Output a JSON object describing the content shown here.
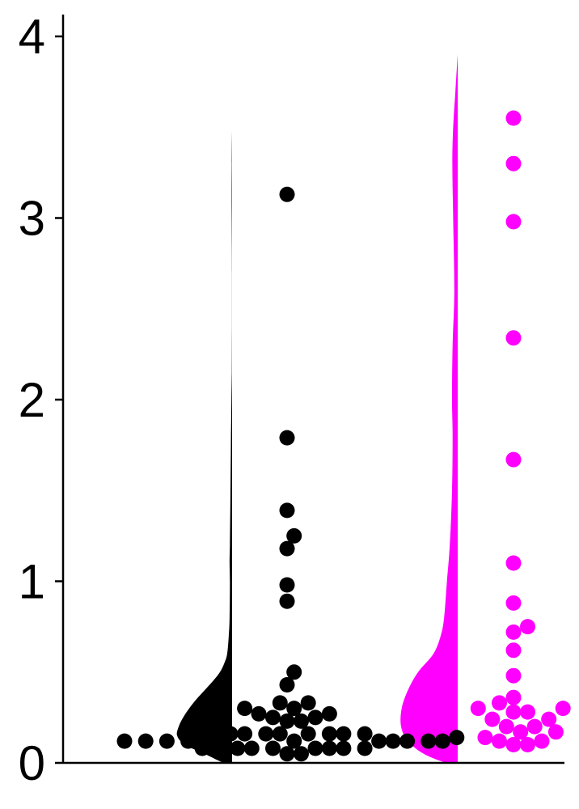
{
  "chart_data": {
    "type": "violin-swarm",
    "ylim": [
      0,
      4.1
    ],
    "yticks": [
      0,
      1,
      2,
      3,
      4
    ],
    "ytick_labels": [
      "0",
      "1",
      "2",
      "3",
      "4"
    ],
    "grid": false,
    "series": [
      {
        "color": "#000000",
        "density_max": 3.48,
        "density": [
          {
            "y": 0.0,
            "d": 0.15
          },
          {
            "y": 0.05,
            "d": 0.5
          },
          {
            "y": 0.1,
            "d": 0.86
          },
          {
            "y": 0.15,
            "d": 1.0
          },
          {
            "y": 0.2,
            "d": 0.97
          },
          {
            "y": 0.25,
            "d": 0.89
          },
          {
            "y": 0.3,
            "d": 0.78
          },
          {
            "y": 0.35,
            "d": 0.65
          },
          {
            "y": 0.4,
            "d": 0.5
          },
          {
            "y": 0.45,
            "d": 0.35
          },
          {
            "y": 0.5,
            "d": 0.22
          },
          {
            "y": 0.55,
            "d": 0.14
          },
          {
            "y": 0.6,
            "d": 0.09
          },
          {
            "y": 0.7,
            "d": 0.06
          },
          {
            "y": 0.8,
            "d": 0.045
          },
          {
            "y": 1.0,
            "d": 0.04
          },
          {
            "y": 1.1,
            "d": 0.045
          },
          {
            "y": 1.2,
            "d": 0.04
          },
          {
            "y": 1.4,
            "d": 0.033
          },
          {
            "y": 1.6,
            "d": 0.026
          },
          {
            "y": 1.8,
            "d": 0.02
          },
          {
            "y": 2.0,
            "d": 0.012
          },
          {
            "y": 2.15,
            "d": 0.005
          },
          {
            "y": 2.4,
            "d": 0.002
          },
          {
            "y": 2.7,
            "d": 0.0015
          },
          {
            "y": 2.9,
            "d": 0.004
          },
          {
            "y": 3.1,
            "d": 0.007
          },
          {
            "y": 3.3,
            "d": 0.005
          },
          {
            "y": 3.48,
            "d": 0.0
          }
        ],
        "values": [
          3.13,
          1.79,
          1.39,
          1.25,
          1.18,
          0.98,
          0.89,
          0.5,
          0.43,
          0.33,
          0.33,
          0.3,
          0.3,
          0.27,
          0.27,
          0.25,
          0.25,
          0.23,
          0.23,
          0.16,
          0.16,
          0.16,
          0.16,
          0.16,
          0.16,
          0.16,
          0.16,
          0.16,
          0.14,
          0.12,
          0.12,
          0.12,
          0.12,
          0.12,
          0.12,
          0.12,
          0.12,
          0.12,
          0.12,
          0.08,
          0.08,
          0.08,
          0.08,
          0.08,
          0.08,
          0.08,
          0.08,
          0.08,
          0.05,
          0.05
        ]
      },
      {
        "color": "#ff00ff",
        "density_max": 3.9,
        "density": [
          {
            "y": 0.0,
            "d": 0.2
          },
          {
            "y": 0.05,
            "d": 0.6
          },
          {
            "y": 0.12,
            "d": 0.88
          },
          {
            "y": 0.2,
            "d": 1.0
          },
          {
            "y": 0.3,
            "d": 0.99
          },
          {
            "y": 0.4,
            "d": 0.88
          },
          {
            "y": 0.5,
            "d": 0.7
          },
          {
            "y": 0.6,
            "d": 0.43
          },
          {
            "y": 0.7,
            "d": 0.3
          },
          {
            "y": 0.8,
            "d": 0.24
          },
          {
            "y": 1.0,
            "d": 0.19
          },
          {
            "y": 1.2,
            "d": 0.14
          },
          {
            "y": 1.5,
            "d": 0.1
          },
          {
            "y": 1.8,
            "d": 0.09
          },
          {
            "y": 2.0,
            "d": 0.1
          },
          {
            "y": 2.3,
            "d": 0.09
          },
          {
            "y": 2.6,
            "d": 0.06
          },
          {
            "y": 3.0,
            "d": 0.08
          },
          {
            "y": 3.3,
            "d": 0.095
          },
          {
            "y": 3.5,
            "d": 0.08
          },
          {
            "y": 3.7,
            "d": 0.04
          },
          {
            "y": 3.9,
            "d": 0.0
          }
        ],
        "values": [
          3.55,
          3.3,
          2.98,
          2.34,
          1.67,
          1.1,
          0.88,
          0.75,
          0.72,
          0.62,
          0.48,
          0.36,
          0.33,
          0.3,
          0.3,
          0.28,
          0.28,
          0.24,
          0.24,
          0.2,
          0.2,
          0.17,
          0.17,
          0.14,
          0.12,
          0.12,
          0.1,
          0.1
        ]
      }
    ]
  }
}
